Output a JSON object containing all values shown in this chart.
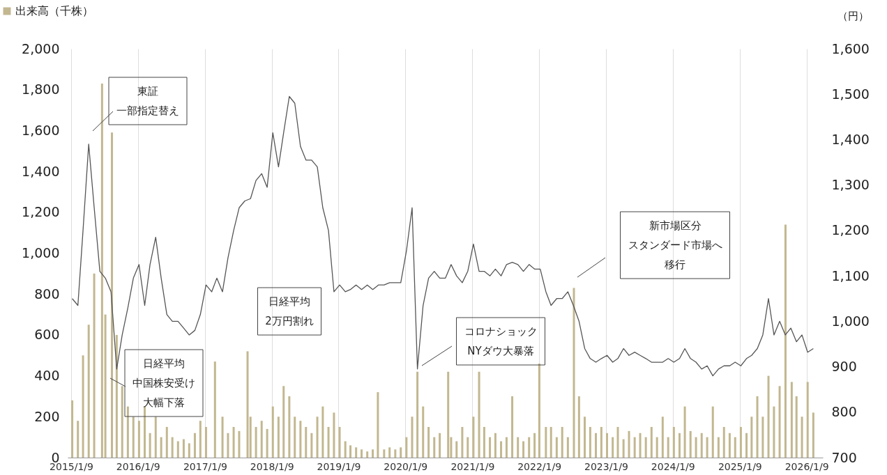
{
  "chart_data": {
    "type": "bar",
    "y2label": "（円）",
    "legend": "top left",
    "grid": "x",
    "xlim": [
      "2015-01-09",
      "2026-03-20"
    ],
    "xticks": [
      {
        "value": "2015-01-09",
        "label": "2015/1/9"
      },
      {
        "value": "2016-01-09",
        "label": "2016/1/9"
      },
      {
        "value": "2017-01-09",
        "label": "2017/1/9"
      },
      {
        "value": "2018-01-09",
        "label": "2018/1/9"
      },
      {
        "value": "2019-01-09",
        "label": "2019/1/9"
      },
      {
        "value": "2020-01-09",
        "label": "2020/1/9"
      },
      {
        "value": "2021-01-09",
        "label": "2021/1/9"
      },
      {
        "value": "2022-01-09",
        "label": "2022/1/9"
      },
      {
        "value": "2023-01-09",
        "label": "2023/1/9"
      },
      {
        "value": "2024-01-09",
        "label": "2024/1/9"
      },
      {
        "value": "2025-01-09",
        "label": "2025/1/9"
      },
      {
        "value": "2026-01-09",
        "label": "2026/1/9"
      }
    ],
    "ylim": [
      0,
      2000
    ],
    "yticks": [
      0,
      200,
      400,
      600,
      800,
      {
        "value": 1000,
        "label": "1,000"
      },
      {
        "value": 1200,
        "label": "1,200"
      },
      {
        "value": 1400,
        "label": "1,400"
      },
      {
        "value": 1600,
        "label": "1,600"
      },
      {
        "value": 1800,
        "label": "1,800"
      },
      {
        "value": 2000,
        "label": "2,000"
      }
    ],
    "y2lim": [
      700,
      1600
    ],
    "y2ticks": [
      700,
      800,
      900,
      {
        "value": 1000,
        "label": "1,000"
      },
      {
        "value": 1100,
        "label": "1,100"
      },
      {
        "value": 1200,
        "label": "1,200"
      },
      {
        "value": 1300,
        "label": "1,300"
      },
      {
        "value": 1400,
        "label": "1,400"
      },
      {
        "value": 1500,
        "label": "1,500"
      },
      {
        "value": 1600,
        "label": "1,600"
      }
    ],
    "series": [
      {
        "name": "出来高（千株）",
        "color": "#c2b790",
        "x": [
          "2015-01-15",
          "2015-02-15",
          "2015-03-15",
          "2015-04-15",
          "2015-05-15",
          "2015-06-27",
          "2015-07-15",
          "2015-08-20",
          "2015-09-15",
          "2015-10-15",
          "2015-11-15",
          "2015-12-15",
          "2016-01-15",
          "2016-02-15",
          "2016-03-15",
          "2016-04-15",
          "2016-05-15",
          "2016-06-15",
          "2016-07-15",
          "2016-08-15",
          "2016-09-15",
          "2016-10-15",
          "2016-11-15",
          "2016-12-15",
          "2017-01-15",
          "2017-03-05",
          "2017-04-15",
          "2017-05-15",
          "2017-06-15",
          "2017-07-15",
          "2017-08-30",
          "2017-09-15",
          "2017-10-15",
          "2017-11-15",
          "2017-12-15",
          "2018-01-15",
          "2018-02-15",
          "2018-03-15",
          "2018-04-15",
          "2018-05-15",
          "2018-06-15",
          "2018-07-15",
          "2018-08-15",
          "2018-09-15",
          "2018-10-15",
          "2018-11-15",
          "2018-12-15",
          "2019-01-15",
          "2019-02-15",
          "2019-03-15",
          "2019-04-15",
          "2019-05-15",
          "2019-06-15",
          "2019-07-15",
          "2019-08-12",
          "2019-09-15",
          "2019-10-15",
          "2019-11-15",
          "2019-12-15",
          "2020-01-15",
          "2020-02-15",
          "2020-03-15",
          "2020-04-15",
          "2020-05-15",
          "2020-06-15",
          "2020-07-15",
          "2020-08-30",
          "2020-09-15",
          "2020-10-15",
          "2020-11-15",
          "2020-12-15",
          "2021-01-15",
          "2021-02-15",
          "2021-03-15",
          "2021-04-15",
          "2021-05-15",
          "2021-06-15",
          "2021-07-15",
          "2021-08-15",
          "2021-09-15",
          "2021-10-15",
          "2021-11-15",
          "2021-12-15",
          "2022-01-10",
          "2022-02-15",
          "2022-03-15",
          "2022-04-15",
          "2022-05-15",
          "2022-06-15",
          "2022-07-18",
          "2022-08-15",
          "2022-09-15",
          "2022-10-15",
          "2022-11-15",
          "2022-12-15",
          "2023-01-15",
          "2023-02-15",
          "2023-03-15",
          "2023-04-15",
          "2023-05-15",
          "2023-06-15",
          "2023-07-15",
          "2023-08-15",
          "2023-09-15",
          "2023-10-15",
          "2023-11-15",
          "2023-12-15",
          "2024-01-15",
          "2024-02-15",
          "2024-03-15",
          "2024-04-15",
          "2024-05-15",
          "2024-06-15",
          "2024-07-15",
          "2024-08-15",
          "2024-09-15",
          "2024-10-15",
          "2024-11-15",
          "2024-12-15",
          "2025-01-15",
          "2025-02-15",
          "2025-03-15",
          "2025-04-15",
          "2025-05-15",
          "2025-06-15",
          "2025-07-15",
          "2025-08-15",
          "2025-09-16",
          "2025-10-20",
          "2025-11-15",
          "2025-12-15",
          "2026-01-15",
          "2026-02-15"
        ],
        "values": [
          280,
          180,
          500,
          650,
          900,
          1830,
          700,
          1590,
          600,
          350,
          250,
          200,
          180,
          250,
          120,
          200,
          100,
          150,
          100,
          80,
          90,
          70,
          120,
          180,
          150,
          470,
          200,
          120,
          150,
          130,
          520,
          200,
          150,
          180,
          140,
          250,
          200,
          350,
          300,
          200,
          180,
          150,
          120,
          200,
          250,
          150,
          220,
          150,
          80,
          60,
          50,
          40,
          30,
          40,
          320,
          40,
          50,
          40,
          50,
          100,
          200,
          420,
          250,
          150,
          100,
          120,
          420,
          100,
          80,
          150,
          100,
          200,
          420,
          150,
          100,
          120,
          80,
          100,
          300,
          100,
          80,
          100,
          120,
          460,
          150,
          150,
          100,
          150,
          100,
          830,
          300,
          200,
          150,
          120,
          150,
          120,
          100,
          150,
          90,
          130,
          100,
          120,
          100,
          150,
          100,
          200,
          100,
          150,
          120,
          250,
          130,
          100,
          120,
          100,
          250,
          100,
          150,
          120,
          100,
          150,
          120,
          200,
          300,
          200,
          400,
          250,
          350,
          1140,
          370,
          300,
          200,
          370,
          220
        ]
      },
      {
        "type": "line",
        "axis": "y2",
        "color": "#555555",
        "x": [
          "2015-01-15",
          "2015-02-15",
          "2015-03-15",
          "2015-04-15",
          "2015-05-15",
          "2015-06-15",
          "2015-07-15",
          "2015-08-15",
          "2015-09-15",
          "2015-10-15",
          "2015-11-15",
          "2015-12-15",
          "2016-01-15",
          "2016-02-15",
          "2016-03-15",
          "2016-04-15",
          "2016-05-15",
          "2016-06-15",
          "2016-07-15",
          "2016-08-15",
          "2016-09-15",
          "2016-10-15",
          "2016-11-15",
          "2016-12-15",
          "2017-01-15",
          "2017-02-15",
          "2017-03-15",
          "2017-04-15",
          "2017-05-15",
          "2017-06-15",
          "2017-07-15",
          "2017-08-15",
          "2017-09-15",
          "2017-10-15",
          "2017-11-15",
          "2017-12-15",
          "2018-01-15",
          "2018-02-15",
          "2018-03-15",
          "2018-04-15",
          "2018-05-15",
          "2018-06-15",
          "2018-07-15",
          "2018-08-15",
          "2018-09-15",
          "2018-10-15",
          "2018-11-15",
          "2018-12-15",
          "2019-01-15",
          "2019-02-15",
          "2019-03-15",
          "2019-04-15",
          "2019-05-15",
          "2019-06-15",
          "2019-07-15",
          "2019-08-15",
          "2019-09-15",
          "2019-10-15",
          "2019-11-15",
          "2019-12-15",
          "2020-01-15",
          "2020-02-15",
          "2020-03-15",
          "2020-04-15",
          "2020-05-15",
          "2020-06-15",
          "2020-07-15",
          "2020-08-15",
          "2020-09-15",
          "2020-10-15",
          "2020-11-15",
          "2020-12-15",
          "2021-01-15",
          "2021-02-15",
          "2021-03-15",
          "2021-04-15",
          "2021-05-15",
          "2021-06-15",
          "2021-07-15",
          "2021-08-15",
          "2021-09-15",
          "2021-10-15",
          "2021-11-15",
          "2021-12-15",
          "2022-01-15",
          "2022-02-15",
          "2022-03-15",
          "2022-04-15",
          "2022-05-15",
          "2022-06-15",
          "2022-07-15",
          "2022-08-15",
          "2022-09-15",
          "2022-10-15",
          "2022-11-15",
          "2022-12-15",
          "2023-01-15",
          "2023-02-15",
          "2023-03-15",
          "2023-04-15",
          "2023-05-15",
          "2023-06-15",
          "2023-07-15",
          "2023-08-15",
          "2023-09-15",
          "2023-10-15",
          "2023-11-15",
          "2023-12-15",
          "2024-01-15",
          "2024-02-15",
          "2024-03-15",
          "2024-04-15",
          "2024-05-15",
          "2024-06-15",
          "2024-07-15",
          "2024-08-15",
          "2024-09-15",
          "2024-10-15",
          "2024-11-15",
          "2024-12-15",
          "2025-01-15",
          "2025-02-15",
          "2025-03-15",
          "2025-04-15",
          "2025-05-15",
          "2025-06-15",
          "2025-07-15",
          "2025-08-15",
          "2025-09-15",
          "2025-10-15",
          "2025-11-15",
          "2025-12-15",
          "2026-01-15",
          "2026-02-15"
        ],
        "values": [
          1050,
          1035,
          1200,
          1390,
          1250,
          1110,
          1095,
          1065,
          895,
          970,
          1030,
          1095,
          1125,
          1035,
          1125,
          1185,
          1095,
          1015,
          1000,
          1000,
          985,
          970,
          980,
          1015,
          1080,
          1065,
          1095,
          1065,
          1140,
          1200,
          1250,
          1265,
          1270,
          1310,
          1325,
          1295,
          1415,
          1340,
          1415,
          1495,
          1480,
          1385,
          1355,
          1355,
          1340,
          1250,
          1200,
          1065,
          1080,
          1065,
          1070,
          1080,
          1070,
          1080,
          1070,
          1080,
          1080,
          1085,
          1085,
          1085,
          1155,
          1250,
          895,
          1035,
          1095,
          1110,
          1095,
          1095,
          1125,
          1100,
          1085,
          1110,
          1170,
          1110,
          1110,
          1100,
          1115,
          1100,
          1125,
          1130,
          1125,
          1110,
          1125,
          1115,
          1115,
          1065,
          1035,
          1050,
          1050,
          1065,
          1035,
          1000,
          940,
          918,
          910,
          918,
          925,
          910,
          918,
          940,
          925,
          932,
          925,
          918,
          910,
          910,
          910,
          918,
          910,
          918,
          940,
          918,
          910,
          895,
          902,
          880,
          895,
          902,
          902,
          910,
          902,
          918,
          925,
          940,
          970,
          1050,
          970,
          1000,
          970,
          985,
          955,
          970,
          932,
          940
        ]
      }
    ],
    "annotations": [
      "東証一部指定替え",
      "日経平均中国株安受け大幅下落",
      "日経平均2万円割れ",
      "コロナショックNYダウ大暴落",
      "新市場区分スタンダード市場へ移行"
    ]
  }
}
